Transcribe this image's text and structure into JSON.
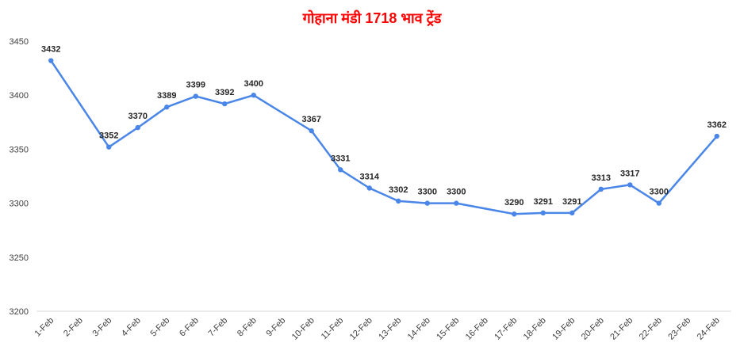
{
  "chart_data": {
    "type": "line",
    "title": "गोहाना मंडी 1718 भाव ट्रेंड",
    "categories": [
      "1-Feb",
      "2-Feb",
      "3-Feb",
      "4-Feb",
      "5-Feb",
      "6-Feb",
      "7-Feb",
      "8-Feb",
      "9-Feb",
      "10-Feb",
      "11-Feb",
      "12-Feb",
      "13-Feb",
      "14-Feb",
      "15-Feb",
      "16-Feb",
      "17-Feb",
      "18-Feb",
      "19-Feb",
      "20-Feb",
      "21-Feb",
      "22-Feb",
      "23-Feb",
      "24-Feb"
    ],
    "values": [
      3432,
      null,
      3352,
      3370,
      3389,
      3399,
      3392,
      3400,
      null,
      3367,
      3331,
      3314,
      3302,
      3300,
      3300,
      null,
      3290,
      3291,
      3291,
      3313,
      3317,
      3300,
      null,
      3362
    ],
    "color": "#4a86e8",
    "ylim": [
      3200,
      3450
    ],
    "yticks": [
      3200,
      3250,
      3300,
      3350,
      3400,
      3450
    ],
    "grid": false
  }
}
